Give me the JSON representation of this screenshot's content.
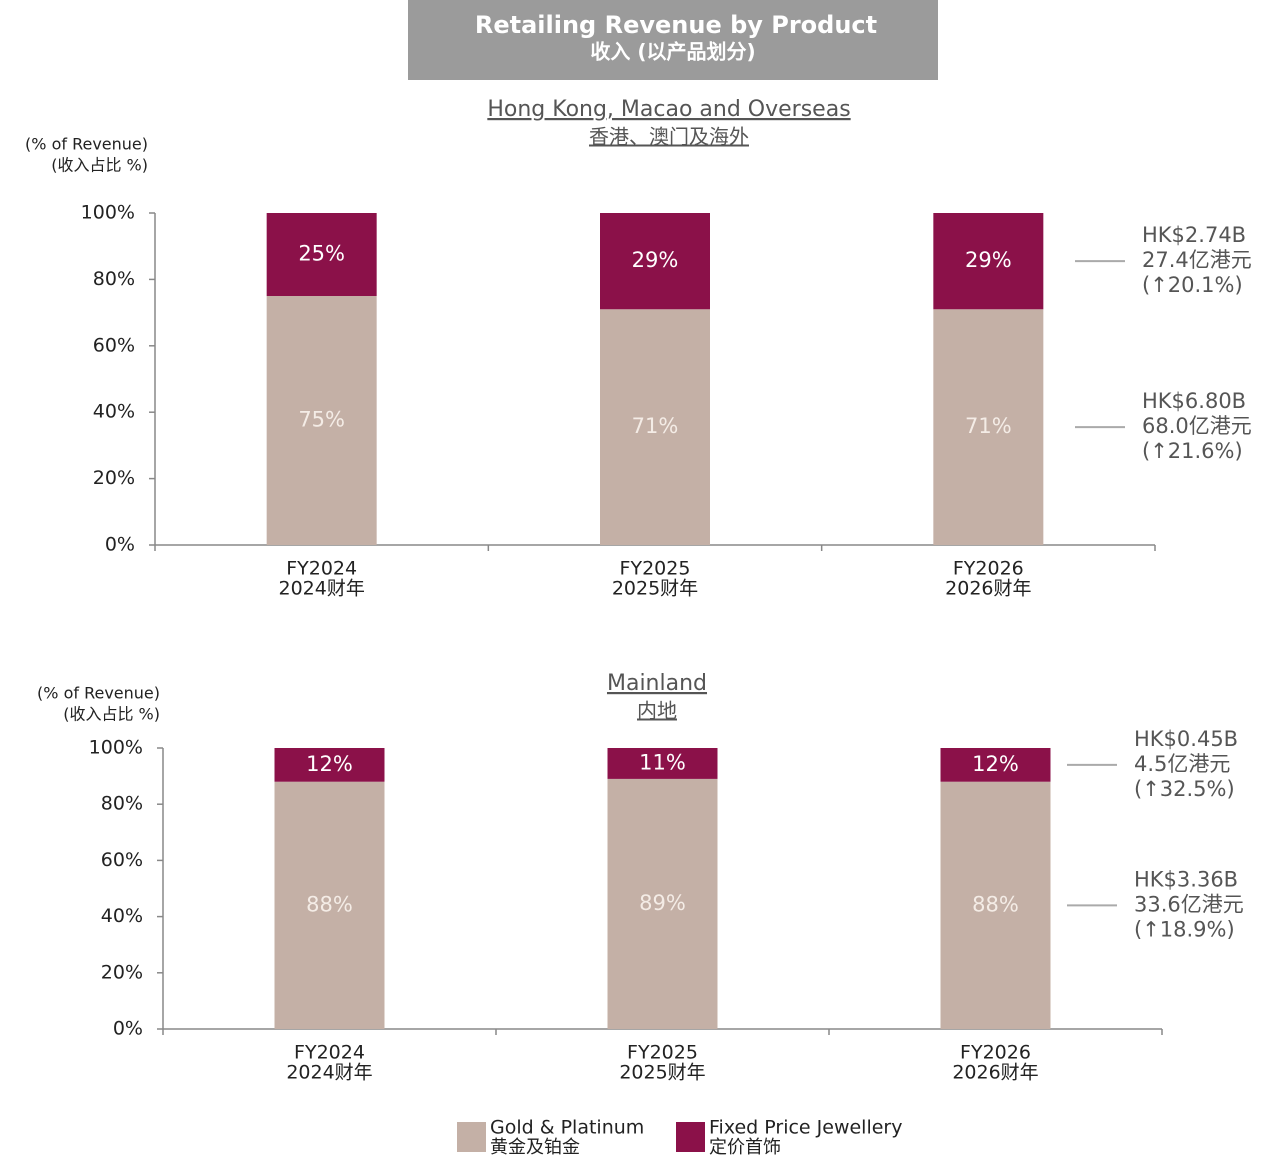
{
  "header": {
    "title": "Retailing Revenue by Product",
    "subtitle": "收入 (以产品划分)"
  },
  "chart_data": [
    {
      "type": "stacked_bar",
      "title": "Hong Kong, Macao and Overseas",
      "title_cn": "香港、澳门及海外",
      "y_label": "(% of Revenue)",
      "y_label_cn": "(收入占比 %)",
      "categories": [
        "FY2024",
        "FY2025",
        "FY2026"
      ],
      "categories_cn": [
        "2024财年",
        "2025财年",
        "2026财年"
      ],
      "series": [
        {
          "name": "Gold & Platinum",
          "name_cn": "黄金及铂金",
          "color": "#c4b0a6",
          "values": [
            75,
            71,
            71
          ],
          "value_labels": [
            "75%",
            "71%",
            "71%"
          ],
          "annotation": [
            "HK$6.80B",
            "68.0亿港元",
            "(↑21.6%)"
          ]
        },
        {
          "name": "Fixed Price Jewellery",
          "name_cn": "定价首饰",
          "color": "#8b1149",
          "values": [
            25,
            29,
            29
          ],
          "value_labels": [
            "25%",
            "29%",
            "29%"
          ],
          "annotation": [
            "HK$2.74B",
            "27.4亿港元",
            "(↑20.1%)"
          ]
        }
      ],
      "ylim": [
        0,
        100
      ],
      "yticks": [
        {
          "value": 0,
          "label": "0%"
        },
        {
          "value": 20,
          "label": "20%"
        },
        {
          "value": 40,
          "label": "40%"
        },
        {
          "value": 60,
          "label": "60%"
        },
        {
          "value": 80,
          "label": "80%"
        },
        {
          "value": 100,
          "label": "100%"
        }
      ]
    },
    {
      "type": "stacked_bar",
      "title": "Mainland",
      "title_cn": "内地",
      "y_label": "(% of Revenue)",
      "y_label_cn": "(收入占比 %)",
      "categories": [
        "FY2024",
        "FY2025",
        "FY2026"
      ],
      "categories_cn": [
        "2024财年",
        "2025财年",
        "2026财年"
      ],
      "series": [
        {
          "color": "#c4b0a6",
          "values": [
            88,
            89,
            88
          ],
          "value_labels": [
            "88%",
            "89%",
            "88%"
          ],
          "annotation": [
            "HK$3.36B",
            "33.6亿港元",
            "(↑18.9%)"
          ]
        },
        {
          "color": "#8b1149",
          "values": [
            12,
            11,
            12
          ],
          "value_labels": [
            "12%",
            "11%",
            "12%"
          ],
          "annotation": [
            "HK$0.45B",
            "4.5亿港元",
            "(↑32.5%)"
          ]
        }
      ],
      "ylim": [
        0,
        100
      ],
      "yticks": [
        {
          "value": 0,
          "label": "0%"
        },
        {
          "value": 20,
          "label": "20%"
        },
        {
          "value": 40,
          "label": "40%"
        },
        {
          "value": 60,
          "label": "60%"
        },
        {
          "value": 80,
          "label": "80%"
        },
        {
          "value": 100,
          "label": "100%"
        }
      ]
    }
  ]
}
